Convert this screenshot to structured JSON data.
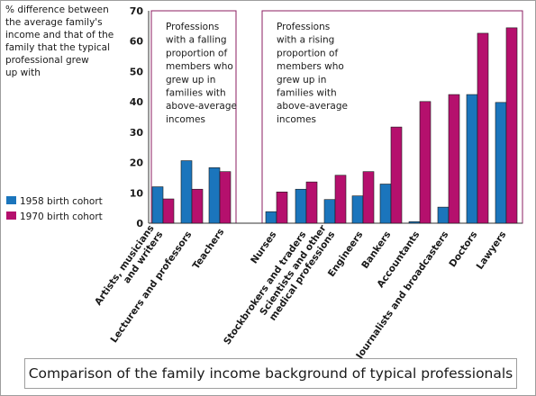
{
  "chart_data": {
    "type": "bar",
    "ylabel": "% difference between the average family's income and that of the family that the typical professional grew up with",
    "ylabel_lines": [
      "% difference between",
      "the average family's",
      "income and that of the",
      "family that the typical",
      "professional grew",
      "up with"
    ],
    "ylim": [
      0,
      70
    ],
    "yticks": [
      0,
      10,
      20,
      30,
      40,
      50,
      60,
      70
    ],
    "grid": false,
    "legend_position": "left",
    "categories": [
      "Artists, musicians and writers",
      "Lecturers and professors",
      "Teachers",
      "Nurses",
      "Stockbrokers and traders",
      "Scientists and other medical professions",
      "Engineers",
      "Bankers",
      "Accountants",
      "Journalists and broadcasters",
      "Doctors",
      "Lawyers"
    ],
    "category_label_lines": [
      [
        "Artists, musicians",
        "and writers"
      ],
      [
        "Lecturers and professors"
      ],
      [
        "Teachers"
      ],
      [
        "Nurses"
      ],
      [
        "Stockbrokers and traders"
      ],
      [
        "Scientists and other",
        "medical professions"
      ],
      [
        "Engineers"
      ],
      [
        "Bankers"
      ],
      [
        "Accountants"
      ],
      [
        "Journalists and broadcasters"
      ],
      [
        "Doctors"
      ],
      [
        "Lawyers"
      ]
    ],
    "series": [
      {
        "name": "1958 birth cohort",
        "color": "#1b75bc",
        "values": [
          12,
          20.6,
          18.3,
          3.8,
          11.2,
          7.8,
          9,
          12.9,
          0.5,
          5.3,
          42.4,
          39.8
        ]
      },
      {
        "name": "1970 birth cohort",
        "color": "#b5106d",
        "values": [
          8,
          11.2,
          17,
          10.3,
          13.6,
          15.8,
          17,
          31.7,
          40.1,
          42.4,
          62.6,
          64.4
        ]
      }
    ],
    "groups": [
      {
        "label": "Professions with a falling proportion of members who grew up in families with above-average incomes",
        "label_lines": [
          "Professions",
          "with a falling",
          "proportion of",
          "members who",
          "grew up in",
          "families with",
          "above-average",
          "incomes"
        ],
        "first": 0,
        "last": 2
      },
      {
        "label": "Professions with a rising proportion of members who grew up in families with above-average incomes",
        "label_lines": [
          "Professions",
          "with a rising",
          "proportion of",
          "members who",
          "grew up in",
          "families with",
          "above-average",
          "incomes"
        ],
        "first": 3,
        "last": 11
      }
    ]
  },
  "caption": "Comparison of the family income background of typical professionals",
  "colors": {
    "background": "#ffffff",
    "frame": "#9e9e9e",
    "group_box": "#8b1c62",
    "axis": "#333333"
  }
}
